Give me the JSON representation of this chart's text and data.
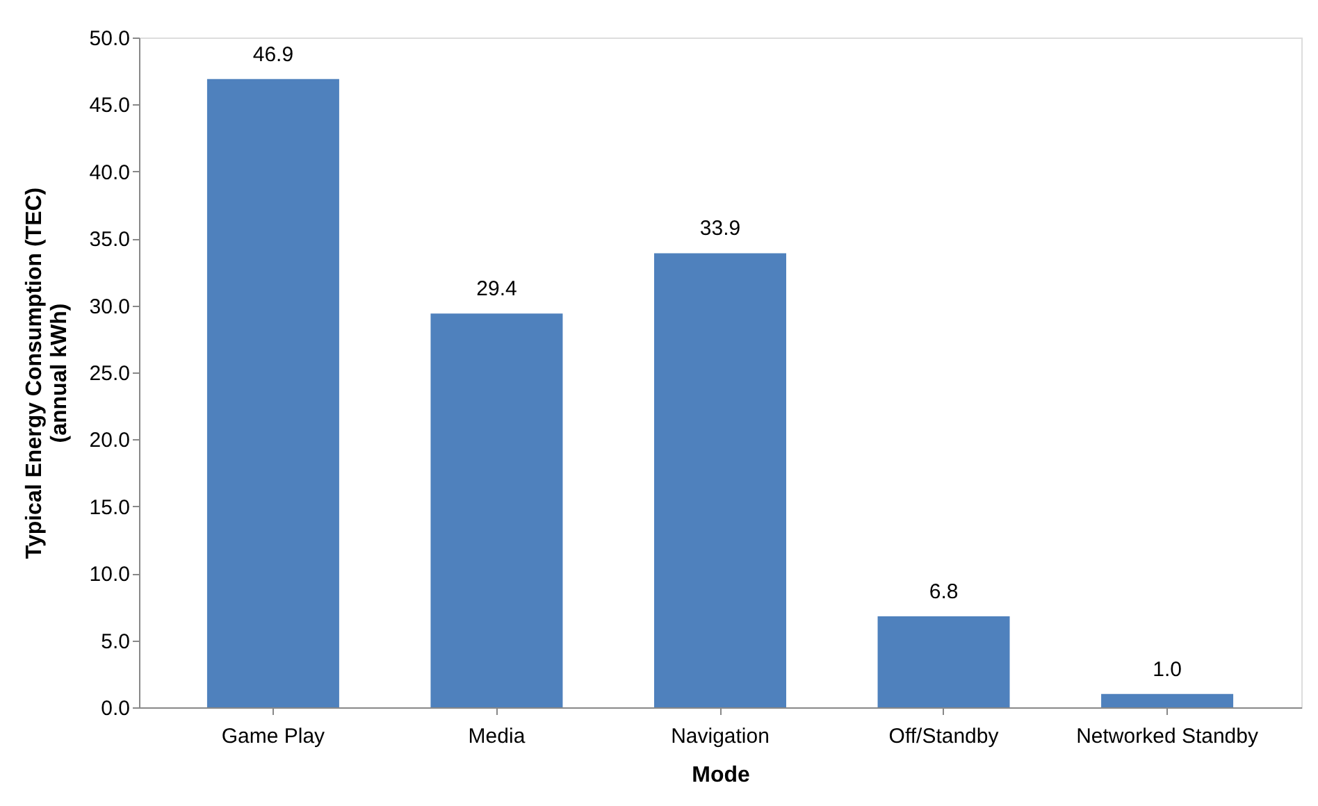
{
  "chart_data": {
    "type": "bar",
    "xlabel": "Mode",
    "ylabel": "Typical Energy Consumption (TEC)\n(annual kWh)",
    "categories": [
      "Game Play",
      "Media",
      "Navigation",
      "Off/Standby",
      "Networked Standby"
    ],
    "values": [
      46.9,
      29.4,
      33.9,
      6.8,
      1.0
    ],
    "color": "#4f81bd",
    "value_labels": [
      "46.9",
      "29.4",
      "33.9",
      "6.8",
      "1.0"
    ],
    "grid": false,
    "ylim": [
      0,
      50
    ],
    "yticks": [
      {
        "value": 0,
        "label": "0.0"
      },
      {
        "value": 5,
        "label": "5.0"
      },
      {
        "value": 10,
        "label": "10.0"
      },
      {
        "value": 15,
        "label": "15.0"
      },
      {
        "value": 20,
        "label": "20.0"
      },
      {
        "value": 25,
        "label": "25.0"
      },
      {
        "value": 30,
        "label": "30.0"
      },
      {
        "value": 35,
        "label": "35.0"
      },
      {
        "value": 40,
        "label": "40.0"
      },
      {
        "value": 45,
        "label": "45.0"
      },
      {
        "value": 50,
        "label": "50.0"
      }
    ]
  }
}
